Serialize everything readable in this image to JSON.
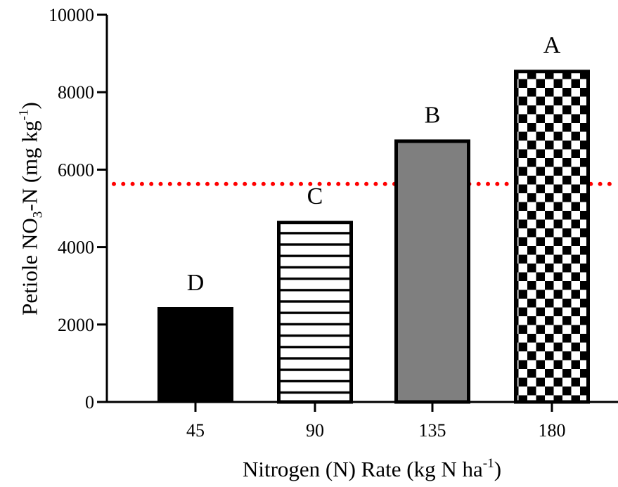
{
  "chart_data": {
    "type": "bar",
    "categories": [
      "45",
      "90",
      "135",
      "180"
    ],
    "values": [
      2450,
      4680,
      6780,
      8580
    ],
    "significance_letters": [
      "D",
      "C",
      "B",
      "A"
    ],
    "bar_fills": [
      "solid-black",
      "horizontal-stripes",
      "solid-gray",
      "checkerboard"
    ],
    "colors": {
      "black": "#000000",
      "gray": "#7f7f7f",
      "white": "#ffffff",
      "threshold": "#ff0000"
    },
    "threshold_line": {
      "y": 5630,
      "style": "dotted",
      "color": "#ff0000"
    },
    "xlabel": {
      "prefix": "Nitrogen (N) Rate (kg N ha",
      "superscript": "-1",
      "suffix": ")"
    },
    "ylabel": {
      "prefix": "Petiole NO",
      "subscript": "3",
      "middle": "-N (mg kg",
      "superscript": "-1",
      "suffix": ")"
    },
    "ylim": [
      0,
      10000
    ],
    "yticks": [
      "0",
      "2000",
      "4000",
      "6000",
      "8000",
      "10000"
    ],
    "grid": false,
    "legend": "none"
  }
}
